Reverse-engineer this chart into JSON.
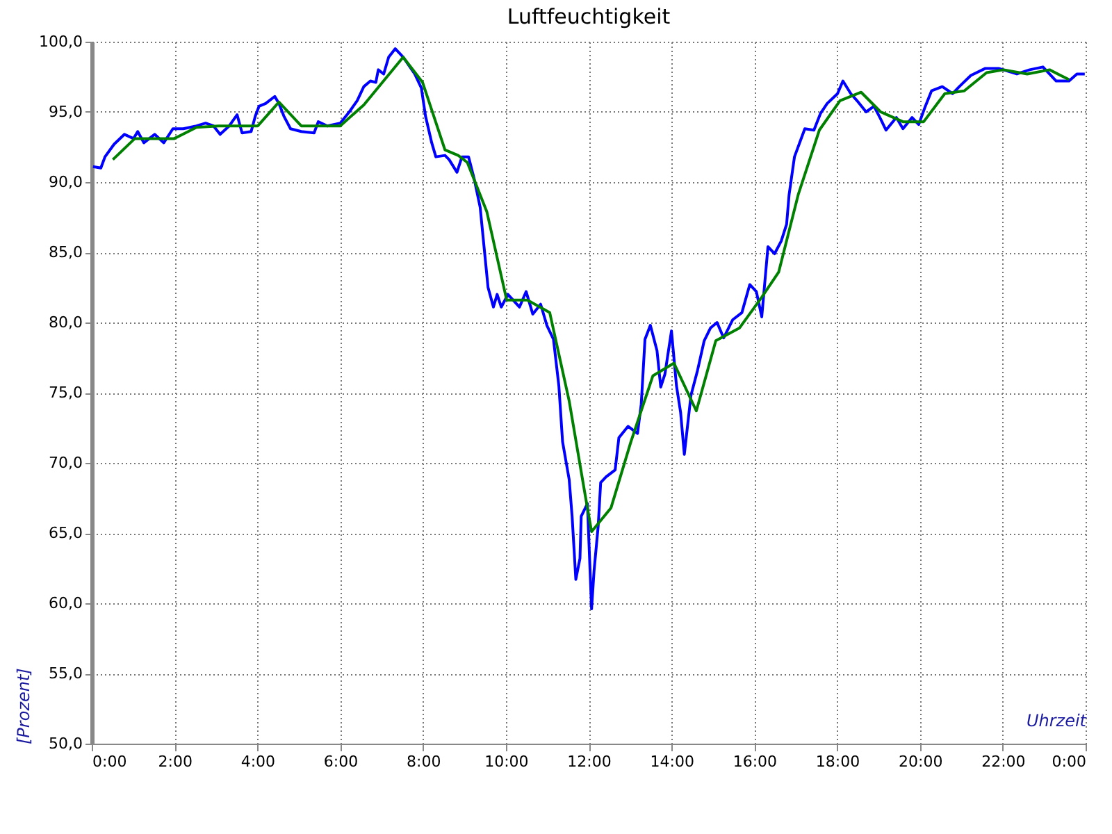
{
  "chart_data": {
    "type": "line",
    "title": "Luftfeuchtigkeit",
    "xlabel": "Uhrzeit",
    "ylabel": "[Prozent]",
    "xlim": [
      0,
      24
    ],
    "xticks": [
      {
        "value": 0,
        "label": "0:00"
      },
      {
        "value": 2,
        "label": "2:00"
      },
      {
        "value": 4,
        "label": "4:00"
      },
      {
        "value": 6,
        "label": "6:00"
      },
      {
        "value": 8,
        "label": "8:00"
      },
      {
        "value": 10,
        "label": "10:00"
      },
      {
        "value": 12,
        "label": "12:00"
      },
      {
        "value": 14,
        "label": "14:00"
      },
      {
        "value": 16,
        "label": "16:00"
      },
      {
        "value": 18,
        "label": "18:00"
      },
      {
        "value": 20,
        "label": "20:00"
      },
      {
        "value": 22,
        "label": "22:00"
      },
      {
        "value": 24,
        "label": "0:00"
      }
    ],
    "ylim": [
      50,
      100
    ],
    "yticks": [
      {
        "value": 50,
        "label": "50,0"
      },
      {
        "value": 55,
        "label": "55,0"
      },
      {
        "value": 60,
        "label": "60,0"
      },
      {
        "value": 65,
        "label": "65,0"
      },
      {
        "value": 70,
        "label": "70,0"
      },
      {
        "value": 75,
        "label": "75,0"
      },
      {
        "value": 80,
        "label": "80,0"
      },
      {
        "value": 85,
        "label": "85,0"
      },
      {
        "value": 90,
        "label": "90,0"
      },
      {
        "value": 95,
        "label": "95,0"
      },
      {
        "value": 100,
        "label": "100,0"
      }
    ],
    "grid": true,
    "series": [
      {
        "color": "#0000ff",
        "x": [
          0.03,
          0.22,
          0.32,
          0.54,
          0.79,
          1.01,
          1.11,
          1.26,
          1.52,
          1.74,
          1.96,
          2.21,
          2.53,
          2.75,
          2.94,
          3.1,
          3.32,
          3.51,
          3.63,
          3.85,
          3.95,
          4.04,
          4.2,
          4.42,
          4.52,
          4.64,
          4.8,
          5.06,
          5.37,
          5.47,
          5.69,
          6.0,
          6.22,
          6.41,
          6.57,
          6.73,
          6.86,
          6.92,
          7.05,
          7.17,
          7.33,
          7.52,
          7.8,
          7.96,
          8.06,
          8.21,
          8.31,
          8.53,
          8.63,
          8.82,
          8.94,
          9.1,
          9.23,
          9.38,
          9.48,
          9.57,
          9.7,
          9.79,
          9.89,
          10.05,
          10.33,
          10.49,
          10.65,
          10.84,
          10.99,
          11.15,
          11.28,
          11.37,
          11.53,
          11.6,
          11.69,
          11.79,
          11.82,
          11.97,
          12.07,
          12.13,
          12.23,
          12.29,
          12.42,
          12.64,
          12.73,
          12.95,
          13.18,
          13.27,
          13.36,
          13.49,
          13.65,
          13.74,
          13.84,
          14.0,
          14.12,
          14.22,
          14.31,
          14.47,
          14.63,
          14.79,
          14.94,
          15.1,
          15.26,
          15.48,
          15.7,
          15.89,
          16.05,
          16.18,
          16.33,
          16.49,
          16.65,
          16.78,
          16.84,
          16.97,
          17.22,
          17.44,
          17.6,
          17.76,
          18.01,
          18.14,
          18.33,
          18.48,
          18.7,
          18.89,
          19.05,
          19.18,
          19.43,
          19.59,
          19.81,
          19.97,
          20.13,
          20.28,
          20.54,
          20.79,
          20.95,
          21.23,
          21.58,
          21.9,
          22.34,
          22.65,
          22.97,
          23.29,
          23.6,
          23.79,
          23.98
        ],
        "values": [
          91.1,
          91.0,
          91.8,
          92.7,
          93.4,
          93.1,
          93.6,
          92.8,
          93.4,
          92.8,
          93.8,
          93.8,
          94.0,
          94.2,
          94.0,
          93.4,
          94.0,
          94.8,
          93.5,
          93.6,
          94.7,
          95.4,
          95.6,
          96.1,
          95.6,
          94.7,
          93.8,
          93.6,
          93.5,
          94.3,
          94.0,
          94.2,
          95.0,
          95.8,
          96.8,
          97.2,
          97.1,
          98.0,
          97.7,
          98.9,
          99.5,
          98.9,
          97.7,
          96.7,
          94.7,
          92.8,
          91.8,
          91.9,
          91.6,
          90.7,
          91.8,
          91.8,
          90.3,
          88.2,
          85.2,
          82.5,
          81.1,
          82.0,
          81.1,
          82.0,
          81.1,
          82.2,
          80.6,
          81.3,
          79.8,
          78.8,
          75.5,
          71.5,
          68.8,
          66.2,
          61.7,
          63.2,
          66.2,
          67.1,
          59.6,
          62.3,
          65.5,
          68.6,
          69.0,
          69.5,
          71.8,
          72.6,
          72.1,
          74.2,
          78.8,
          79.8,
          78.0,
          75.4,
          76.3,
          79.4,
          75.5,
          73.6,
          70.6,
          74.8,
          76.6,
          78.7,
          79.6,
          80.0,
          78.9,
          80.2,
          80.7,
          82.7,
          82.2,
          80.4,
          85.4,
          84.9,
          85.8,
          87.0,
          89.1,
          91.8,
          93.8,
          93.7,
          94.9,
          95.6,
          96.3,
          97.2,
          96.3,
          95.8,
          95.0,
          95.4,
          94.5,
          93.7,
          94.6,
          93.8,
          94.6,
          94.1,
          95.4,
          96.5,
          96.8,
          96.3,
          96.8,
          97.6,
          98.1,
          98.1,
          97.7,
          98.0,
          98.2,
          97.2,
          97.2,
          97.7,
          97.7
        ]
      },
      {
        "color": "#008000",
        "x": [
          0.51,
          1.04,
          1.99,
          2.53,
          3.06,
          4.01,
          4.52,
          5.06,
          6.0,
          6.57,
          7.52,
          7.99,
          8.53,
          8.85,
          9.07,
          9.54,
          10.02,
          10.52,
          11.06,
          11.53,
          11.91,
          12.07,
          12.54,
          13.02,
          13.55,
          14.06,
          14.6,
          15.07,
          15.64,
          16.18,
          16.59,
          17.06,
          17.57,
          18.07,
          18.58,
          19.05,
          19.59,
          20.09,
          20.6,
          21.07,
          21.61,
          22.02,
          22.59,
          23.13,
          23.6
        ],
        "values": [
          91.6,
          93.1,
          93.1,
          93.9,
          94.0,
          94.0,
          95.7,
          94.0,
          94.0,
          95.5,
          98.9,
          97.1,
          92.3,
          91.9,
          91.4,
          87.9,
          81.6,
          81.6,
          80.7,
          74.4,
          67.8,
          65.1,
          66.8,
          71.5,
          76.2,
          77.1,
          73.7,
          78.7,
          79.6,
          81.8,
          83.6,
          89.1,
          93.7,
          95.8,
          96.4,
          95.0,
          94.3,
          94.3,
          96.3,
          96.5,
          97.8,
          98.0,
          97.7,
          98.0,
          97.3
        ]
      }
    ]
  }
}
